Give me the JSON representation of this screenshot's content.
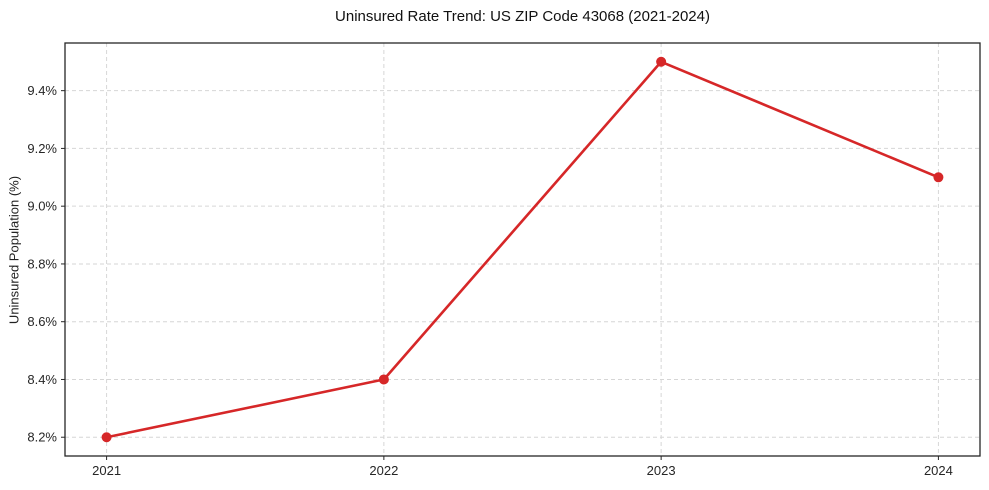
{
  "chart_data": {
    "type": "line",
    "title": "Uninsured Rate Trend: US ZIP Code 43068 (2021-2024)",
    "xlabel": "",
    "ylabel": "Uninsured Population (%)",
    "x": [
      2021,
      2022,
      2023,
      2024
    ],
    "xtick_labels": [
      "2021",
      "2022",
      "2023",
      "2024"
    ],
    "values": [
      8.2,
      8.4,
      9.5,
      9.1
    ],
    "yticks": [
      8.2,
      8.4,
      8.6,
      8.8,
      9.0,
      9.2,
      9.4
    ],
    "ytick_labels": [
      "8.2%",
      "8.4%",
      "8.6%",
      "8.8%",
      "9.0%",
      "9.2%",
      "9.4%"
    ],
    "xlim": [
      2020.85,
      2024.15
    ],
    "ylim": [
      8.135,
      9.565
    ],
    "grid": true,
    "grid_style": "dashed",
    "legend_position": "none",
    "marker": "circle",
    "colors": {
      "line": "#d62728",
      "grid": "#d6d6d6",
      "spine": "#262626",
      "text": "#262626",
      "title": "#111111",
      "background": "#ffffff"
    }
  }
}
